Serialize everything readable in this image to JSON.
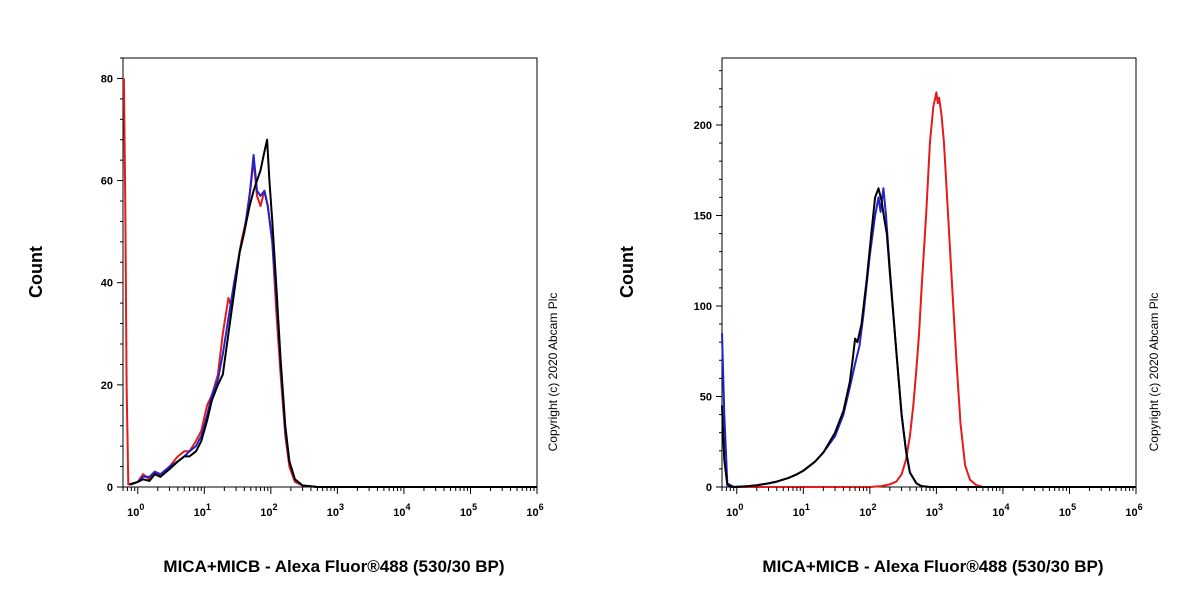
{
  "chart_data": [
    {
      "type": "line",
      "title": "",
      "xlabel": "MICA+MICB - Alexa Fluor®488 (530/30 BP)",
      "ylabel": "Count",
      "x_scale": "log",
      "xlim": [
        0.6,
        1000000
      ],
      "ylim": [
        0,
        84
      ],
      "y_ticks": [
        "0",
        "20",
        "40",
        "60",
        "80"
      ],
      "y_tick_values": [
        0,
        20,
        40,
        60,
        80
      ],
      "x_tick_bases": [
        "10",
        "10",
        "10",
        "10",
        "10",
        "10",
        "10"
      ],
      "x_tick_exps": [
        "0",
        "1",
        "2",
        "3",
        "4",
        "5",
        "6"
      ],
      "x_tick_values": [
        1,
        10,
        100,
        1000,
        10000,
        100000,
        1000000
      ],
      "watermark": "Copyright (c) 2020 Abcam Plc",
      "grid": false,
      "series": [
        {
          "color": "#e41a1c",
          "points": [
            [
              0.62,
              80
            ],
            [
              0.65,
              55
            ],
            [
              0.68,
              20
            ],
            [
              0.72,
              0.5
            ],
            [
              0.8,
              0.5
            ],
            [
              1,
              1
            ],
            [
              1.2,
              2.5
            ],
            [
              1.5,
              1.5
            ],
            [
              1.8,
              3
            ],
            [
              2.2,
              2
            ],
            [
              3,
              4
            ],
            [
              4,
              6
            ],
            [
              5,
              7
            ],
            [
              6,
              7
            ],
            [
              7.5,
              9
            ],
            [
              9,
              11
            ],
            [
              11,
              16
            ],
            [
              13,
              18
            ],
            [
              16,
              22
            ],
            [
              19,
              30
            ],
            [
              23,
              37
            ],
            [
              26,
              35
            ],
            [
              30,
              42
            ],
            [
              36,
              48
            ],
            [
              42,
              52
            ],
            [
              50,
              59
            ],
            [
              55,
              64
            ],
            [
              62,
              57
            ],
            [
              70,
              55
            ],
            [
              80,
              58
            ],
            [
              90,
              55
            ],
            [
              105,
              48
            ],
            [
              120,
              35
            ],
            [
              140,
              22
            ],
            [
              165,
              10
            ],
            [
              190,
              4
            ],
            [
              230,
              1
            ],
            [
              300,
              0.3
            ],
            [
              500,
              0
            ],
            [
              1000000,
              0
            ]
          ]
        },
        {
          "color": "#2222cc",
          "points": [
            [
              0.75,
              0.5
            ],
            [
              1,
              1
            ],
            [
              1.2,
              2
            ],
            [
              1.5,
              2
            ],
            [
              1.8,
              3
            ],
            [
              2.2,
              2.5
            ],
            [
              3,
              4
            ],
            [
              4,
              5
            ],
            [
              5,
              6
            ],
            [
              6,
              7
            ],
            [
              7.5,
              8
            ],
            [
              9,
              10
            ],
            [
              11,
              14
            ],
            [
              13,
              18
            ],
            [
              16,
              21
            ],
            [
              19,
              26
            ],
            [
              23,
              33
            ],
            [
              28,
              40
            ],
            [
              34,
              46
            ],
            [
              40,
              50
            ],
            [
              48,
              57
            ],
            [
              55,
              65
            ],
            [
              62,
              58
            ],
            [
              70,
              57
            ],
            [
              80,
              58
            ],
            [
              90,
              55
            ],
            [
              105,
              48
            ],
            [
              120,
              38
            ],
            [
              140,
              24
            ],
            [
              165,
              11
            ],
            [
              190,
              5
            ],
            [
              230,
              1.5
            ],
            [
              300,
              0.3
            ],
            [
              500,
              0
            ],
            [
              1000000,
              0
            ]
          ]
        },
        {
          "color": "#000000",
          "points": [
            [
              0.75,
              0.5
            ],
            [
              1,
              1
            ],
            [
              1.2,
              1.5
            ],
            [
              1.5,
              1.2
            ],
            [
              1.8,
              2.5
            ],
            [
              2.2,
              2
            ],
            [
              3,
              3.5
            ],
            [
              4,
              5
            ],
            [
              5,
              6
            ],
            [
              6,
              6
            ],
            [
              7.5,
              7
            ],
            [
              9,
              9
            ],
            [
              11,
              13
            ],
            [
              13,
              17
            ],
            [
              16,
              20
            ],
            [
              19,
              22
            ],
            [
              23,
              30
            ],
            [
              28,
              38
            ],
            [
              34,
              46
            ],
            [
              40,
              50
            ],
            [
              48,
              55
            ],
            [
              55,
              58
            ],
            [
              62,
              60
            ],
            [
              70,
              62
            ],
            [
              78,
              65
            ],
            [
              88,
              68
            ],
            [
              95,
              60
            ],
            [
              105,
              52
            ],
            [
              120,
              40
            ],
            [
              140,
              25
            ],
            [
              165,
              12
            ],
            [
              190,
              5
            ],
            [
              230,
              1.5
            ],
            [
              300,
              0.3
            ],
            [
              500,
              0
            ],
            [
              1000000,
              0
            ]
          ]
        }
      ]
    },
    {
      "type": "line",
      "title": "",
      "xlabel": "MICA+MICB - Alexa Fluor®488 (530/30 BP)",
      "ylabel": "Count",
      "x_scale": "log",
      "xlim": [
        0.6,
        1000000
      ],
      "ylim": [
        0,
        237
      ],
      "y_ticks": [
        "0",
        "50",
        "100",
        "150",
        "200"
      ],
      "y_tick_values": [
        0,
        50,
        100,
        150,
        200
      ],
      "x_tick_bases": [
        "10",
        "10",
        "10",
        "10",
        "10",
        "10",
        "10"
      ],
      "x_tick_exps": [
        "0",
        "1",
        "2",
        "3",
        "4",
        "5",
        "6"
      ],
      "x_tick_values": [
        1,
        10,
        100,
        1000,
        10000,
        100000,
        1000000
      ],
      "watermark": "Copyright (c) 2020 Abcam Plc",
      "grid": false,
      "series": [
        {
          "color": "#e41a1c",
          "points": [
            [
              0.8,
              0
            ],
            [
              100,
              0
            ],
            [
              150,
              0.5
            ],
            [
              200,
              1.5
            ],
            [
              250,
              3
            ],
            [
              300,
              7
            ],
            [
              350,
              15
            ],
            [
              400,
              28
            ],
            [
              450,
              45
            ],
            [
              500,
              65
            ],
            [
              550,
              85
            ],
            [
              600,
              110
            ],
            [
              700,
              150
            ],
            [
              800,
              190
            ],
            [
              900,
              210
            ],
            [
              1000,
              218
            ],
            [
              1050,
              212
            ],
            [
              1100,
              215
            ],
            [
              1200,
              205
            ],
            [
              1300,
              190
            ],
            [
              1500,
              150
            ],
            [
              1700,
              115
            ],
            [
              2000,
              70
            ],
            [
              2300,
              35
            ],
            [
              2700,
              12
            ],
            [
              3200,
              4
            ],
            [
              4000,
              1
            ],
            [
              5000,
              0
            ],
            [
              1000000,
              0
            ]
          ]
        },
        {
          "color": "#2222cc",
          "points": [
            [
              0.6,
              85
            ],
            [
              0.65,
              40
            ],
            [
              0.72,
              2
            ],
            [
              0.9,
              0
            ],
            [
              1.5,
              0.5
            ],
            [
              2,
              1
            ],
            [
              3,
              2
            ],
            [
              4,
              3
            ],
            [
              6,
              5
            ],
            [
              8,
              7
            ],
            [
              10,
              9
            ],
            [
              15,
              14
            ],
            [
              20,
              19
            ],
            [
              30,
              28
            ],
            [
              40,
              40
            ],
            [
              50,
              55
            ],
            [
              60,
              68
            ],
            [
              70,
              78
            ],
            [
              80,
              95
            ],
            [
              100,
              128
            ],
            [
              120,
              150
            ],
            [
              135,
              160
            ],
            [
              145,
              152
            ],
            [
              160,
              165
            ],
            [
              175,
              150
            ],
            [
              200,
              120
            ],
            [
              250,
              75
            ],
            [
              300,
              40
            ],
            [
              350,
              20
            ],
            [
              400,
              8
            ],
            [
              500,
              2
            ],
            [
              600,
              0.5
            ],
            [
              800,
              0
            ],
            [
              1000000,
              0
            ]
          ]
        },
        {
          "color": "#000000",
          "points": [
            [
              0.6,
              45
            ],
            [
              0.65,
              15
            ],
            [
              0.72,
              1
            ],
            [
              0.9,
              0
            ],
            [
              1.5,
              0.5
            ],
            [
              2,
              1
            ],
            [
              3,
              2
            ],
            [
              4,
              3
            ],
            [
              6,
              5
            ],
            [
              8,
              7
            ],
            [
              10,
              9
            ],
            [
              15,
              14
            ],
            [
              20,
              19
            ],
            [
              30,
              30
            ],
            [
              40,
              42
            ],
            [
              50,
              58
            ],
            [
              55,
              70
            ],
            [
              60,
              82
            ],
            [
              65,
              80
            ],
            [
              75,
              90
            ],
            [
              90,
              115
            ],
            [
              105,
              140
            ],
            [
              120,
              160
            ],
            [
              135,
              165
            ],
            [
              150,
              158
            ],
            [
              165,
              148
            ],
            [
              180,
              140
            ],
            [
              200,
              118
            ],
            [
              250,
              75
            ],
            [
              300,
              40
            ],
            [
              350,
              20
            ],
            [
              400,
              8
            ],
            [
              500,
              2
            ],
            [
              600,
              0.5
            ],
            [
              800,
              0
            ],
            [
              1000000,
              0
            ]
          ]
        }
      ]
    }
  ]
}
